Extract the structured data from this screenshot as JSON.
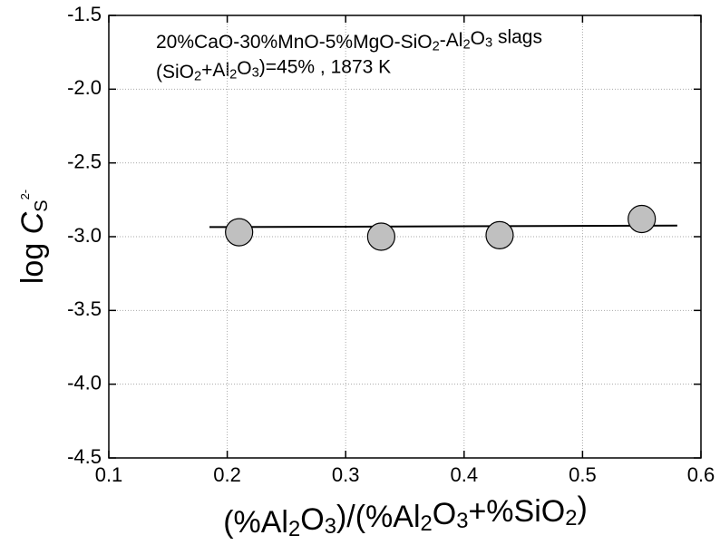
{
  "chart_data": {
    "type": "scatter",
    "annotations": [
      "20%CaO-30%MnO-5%MgO-SiO2-Al2O3 slags",
      "(SiO2+Al2O3)=45% ,  1873 K"
    ],
    "x_label": "(%Al2O3)/(%Al2O3+%SiO2)",
    "y_label": {
      "prefix": "log ",
      "symbol": "C",
      "subscript": "S",
      "superscript": "2-"
    },
    "x": [
      0.21,
      0.33,
      0.43,
      0.55
    ],
    "values": [
      -2.97,
      -3.0,
      -2.99,
      -2.88
    ],
    "color": "#c0c0c0",
    "fit_line": {
      "x": [
        0.185,
        0.58
      ],
      "values": [
        -2.935,
        -2.925
      ],
      "color": "#000000"
    },
    "xlim": [
      0.1,
      0.6
    ],
    "xticks": [
      0.1,
      0.2,
      0.3,
      0.4,
      0.5,
      0.6
    ],
    "ylim": [
      -4.5,
      -1.5
    ],
    "yticks": [
      {
        "value": -4.5,
        "label": "-4.5"
      },
      {
        "value": -4.0,
        "label": "-4.0"
      },
      {
        "value": -3.5,
        "label": "-3.5"
      },
      {
        "value": -3.0,
        "label": "-3.0"
      },
      {
        "value": -2.5,
        "label": "-2.5"
      },
      {
        "value": -2.0,
        "label": "-2.0"
      },
      {
        "value": -1.5,
        "label": "-1.5"
      }
    ],
    "grid": true
  }
}
